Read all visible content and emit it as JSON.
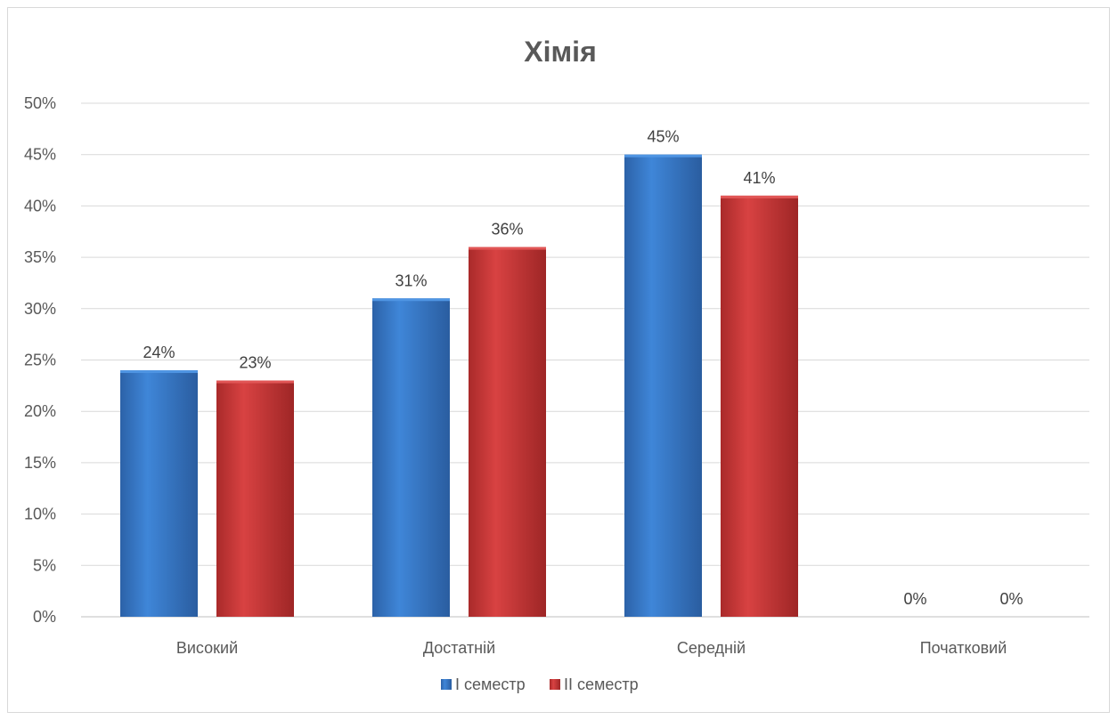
{
  "chart_data": {
    "type": "bar",
    "title": "Хімія",
    "categories": [
      "Високий",
      "Достатній",
      "Середній",
      "Початковий"
    ],
    "series": [
      {
        "name": "I семестр",
        "values": [
          0.24,
          0.31,
          0.45,
          0.0
        ],
        "labels": [
          "24%",
          "31%",
          "45%",
          "0%"
        ]
      },
      {
        "name": "II семестр",
        "values": [
          0.23,
          0.36,
          0.41,
          0.0
        ],
        "labels": [
          "23%",
          "36%",
          "41%",
          "0%"
        ]
      }
    ],
    "ylim": [
      0,
      0.5
    ],
    "yticks": [
      {
        "value": 0.0,
        "label": "0%"
      },
      {
        "value": 0.05,
        "label": "5%"
      },
      {
        "value": 0.1,
        "label": "10%"
      },
      {
        "value": 0.15,
        "label": "15%"
      },
      {
        "value": 0.2,
        "label": "20%"
      },
      {
        "value": 0.25,
        "label": "25%"
      },
      {
        "value": 0.3,
        "label": "30%"
      },
      {
        "value": 0.35,
        "label": "35%"
      },
      {
        "value": 0.4,
        "label": "40%"
      },
      {
        "value": 0.45,
        "label": "45%"
      },
      {
        "value": 0.5,
        "label": "50%"
      }
    ],
    "grid": true,
    "legend_position": "bottom",
    "colors": {
      "I семестр": "#3a7fd0",
      "II семестр": "#d13b3b",
      "grid": "#d9d9d9",
      "axis_text": "#595959"
    }
  }
}
